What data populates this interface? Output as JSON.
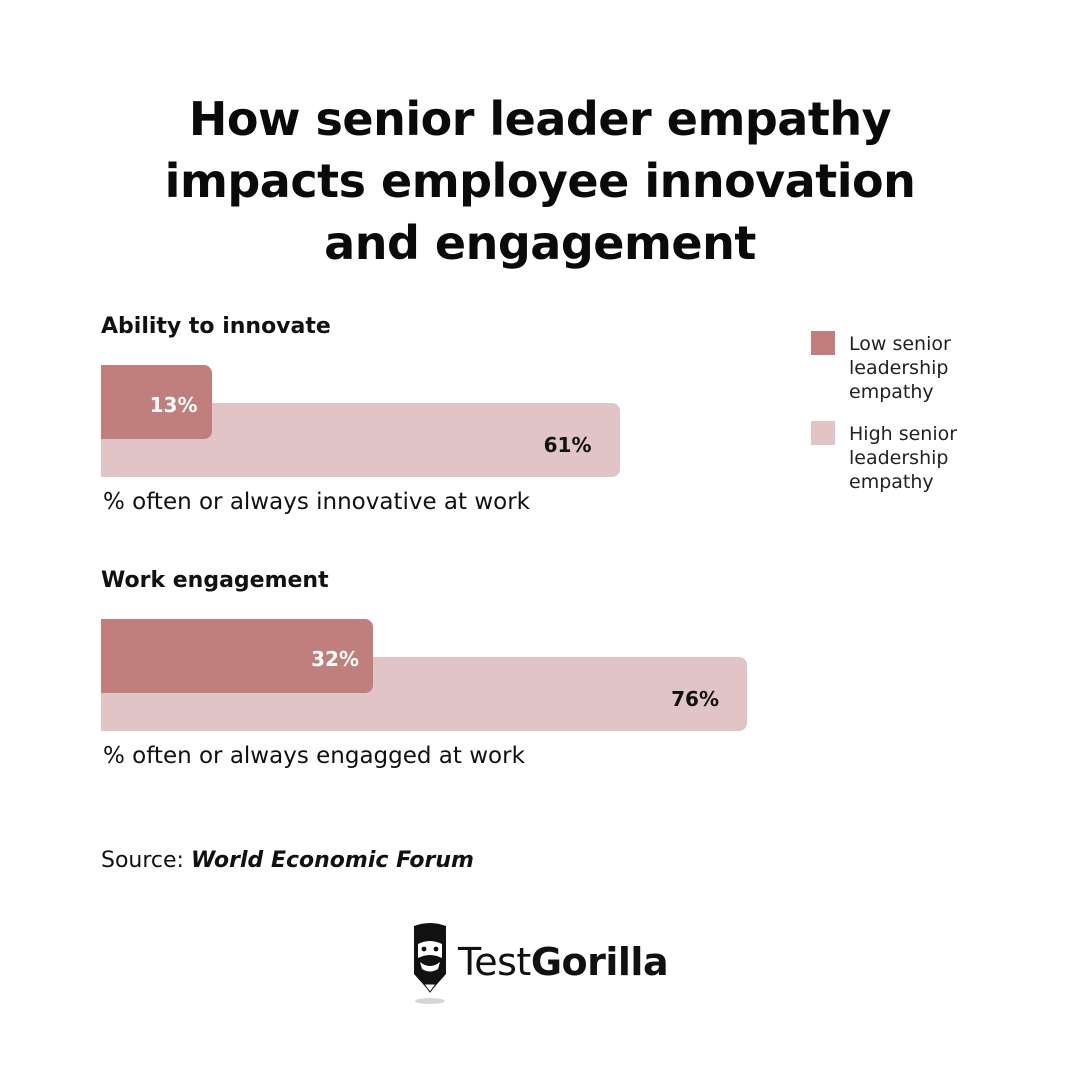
{
  "title": {
    "line1": "How senior leader empathy",
    "line2": "impacts employee innovation",
    "line3": "and engagement"
  },
  "colors": {
    "low": "#c07e7d",
    "high": "#e0c4c6"
  },
  "legend": {
    "low": "Low senior leadership empathy",
    "high": "High senior leadership empathy"
  },
  "chart_data": {
    "type": "bar",
    "orientation": "horizontal",
    "title": "How senior leader empathy impacts employee innovation and engagement",
    "unit": "%",
    "xlim": [
      0,
      100
    ],
    "legend_position": "top-right",
    "series": [
      {
        "name": "Low senior leadership empathy",
        "values": [
          13,
          32
        ]
      },
      {
        "name": "High senior leadership empathy",
        "values": [
          61,
          76
        ]
      }
    ],
    "categories": [
      "Ability to innovate",
      "Work engagement"
    ],
    "groups": [
      {
        "heading": "Ability to innovate",
        "caption": "% often or always innovative at work",
        "low": {
          "value": 13,
          "label": "13%"
        },
        "high": {
          "value": 61,
          "label": "61%"
        }
      },
      {
        "heading": "Work engagement",
        "caption": "% often or always engagged at work",
        "low": {
          "value": 32,
          "label": "32%"
        },
        "high": {
          "value": 76,
          "label": "76%"
        }
      }
    ]
  },
  "source": {
    "label": "Source:",
    "name": "World Economic Forum"
  },
  "brand": {
    "part1": "Test",
    "part2": "Gorilla"
  }
}
